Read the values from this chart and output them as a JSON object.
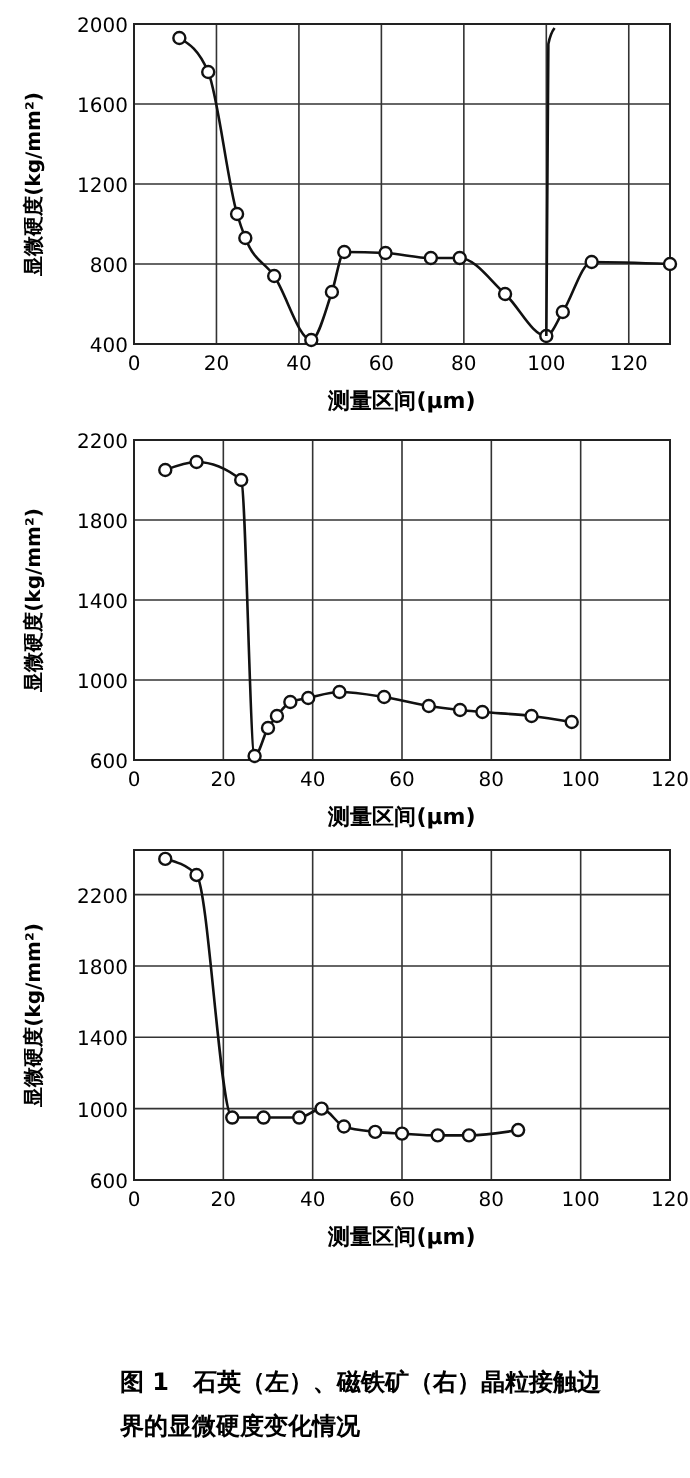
{
  "chart_data": [
    {
      "type": "line",
      "xlabel": "测量区间(μm)",
      "ylabel": "显微硬度(kg/mm²)",
      "xlim": [
        0,
        130
      ],
      "ylim": [
        400,
        2000
      ],
      "xticks": [
        0,
        20,
        40,
        60,
        80,
        100,
        120
      ],
      "yticks": [
        400,
        800,
        1200,
        1600,
        2000
      ],
      "grid": true,
      "series": [
        {
          "color": "#111111",
          "marker": "circle",
          "x": [
            11,
            18,
            25,
            27,
            34,
            43,
            48,
            51,
            61,
            72,
            79,
            90,
            100,
            104,
            111,
            130
          ],
          "values": [
            1930,
            1760,
            1050,
            930,
            740,
            420,
            660,
            860,
            855,
            830,
            830,
            650,
            440,
            560,
            810,
            800
          ]
        },
        {
          "color": "#111111",
          "marker": "none",
          "x": [
            100,
            100.5,
            102
          ],
          "values": [
            440,
            1900,
            1980
          ]
        }
      ]
    },
    {
      "type": "line",
      "xlabel": "测量区间(μm)",
      "ylabel": "显微硬度(kg/mm²)",
      "xlim": [
        0,
        120
      ],
      "ylim": [
        600,
        2200
      ],
      "xticks": [
        0,
        20,
        40,
        60,
        80,
        100,
        120
      ],
      "yticks": [
        600,
        1000,
        1400,
        1800,
        2200
      ],
      "grid": true,
      "series": [
        {
          "color": "#111111",
          "marker": "circle",
          "x": [
            7,
            14,
            24,
            27,
            30,
            32,
            35,
            39,
            46,
            56,
            66,
            73,
            78,
            89,
            98
          ],
          "values": [
            2050,
            2090,
            2000,
            620,
            760,
            820,
            890,
            910,
            940,
            915,
            870,
            850,
            840,
            820,
            790
          ]
        }
      ]
    },
    {
      "type": "line",
      "xlabel": "测量区间(μm)",
      "ylabel": "显微硬度(kg/mm²)",
      "xlim": [
        0,
        120
      ],
      "ylim": [
        600,
        2450
      ],
      "xticks": [
        0,
        20,
        40,
        60,
        80,
        100,
        120
      ],
      "yticks": [
        600,
        1000,
        1400,
        1800,
        2200
      ],
      "grid": true,
      "annotations": [
        "图 1　石英（左）、磁铁矿（右）晶粒接触边界的显微硬度变化情况"
      ],
      "series": [
        {
          "color": "#111111",
          "marker": "circle",
          "x": [
            7,
            14,
            22,
            29,
            37,
            42,
            47,
            54,
            60,
            68,
            75,
            86
          ],
          "values": [
            2400,
            2310,
            950,
            950,
            950,
            1000,
            900,
            870,
            860,
            850,
            850,
            880
          ]
        }
      ]
    }
  ]
}
